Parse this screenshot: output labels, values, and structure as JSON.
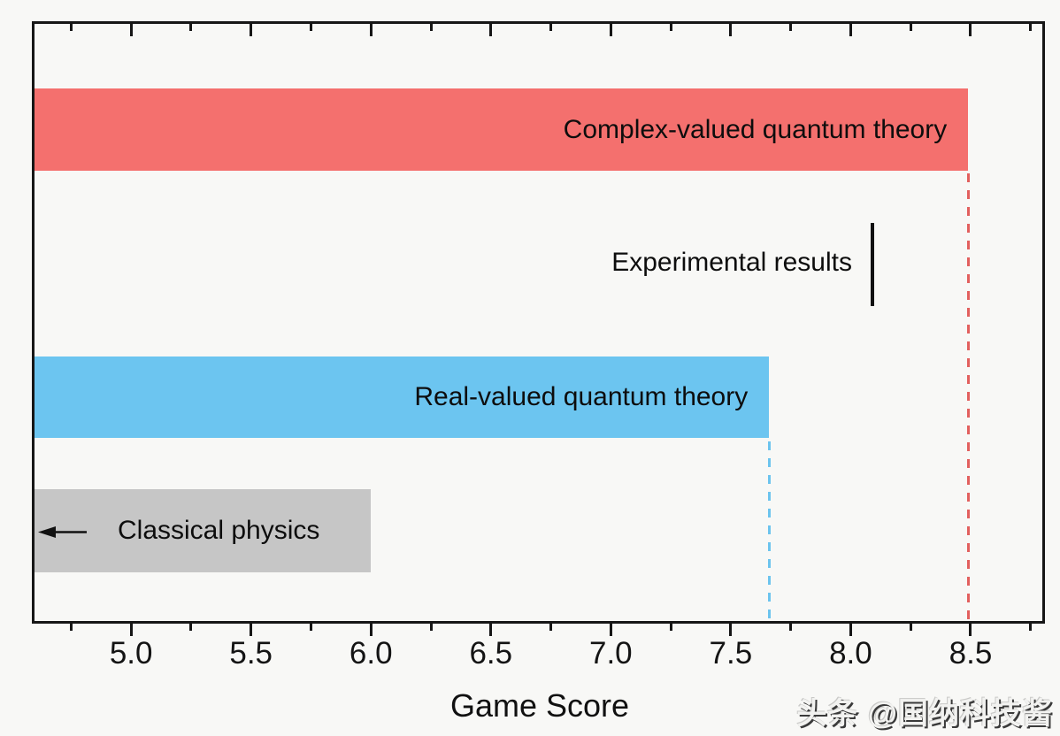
{
  "watermark": {
    "text": "头条 @国纳科技酱"
  },
  "chart_data": {
    "type": "bar",
    "orientation": "horizontal",
    "title": "",
    "xlabel": "Game Score",
    "x_axis": {
      "min": 4.59,
      "max": 8.81,
      "major_ticks": [
        5.0,
        5.5,
        6.0,
        6.5,
        7.0,
        7.5,
        8.0,
        8.5
      ],
      "minor_tick_step": 0.25,
      "tick_decimals": 1,
      "grid": false
    },
    "legend": "labels drawn on bars",
    "rows": [
      {
        "label": "Complex-valued quantum theory",
        "value": 8.49,
        "kind": "bar",
        "color": "#f4706e",
        "guide": true,
        "guide_color": "#e2605e"
      },
      {
        "label": "Experimental results",
        "value": 8.09,
        "kind": "line-marker",
        "color": "#111111"
      },
      {
        "label": "Real-valued quantum theory",
        "value": 7.66,
        "kind": "bar",
        "color": "#6cc5f0",
        "guide": true,
        "guide_color": "#6cc4ee"
      },
      {
        "label": "Classical physics",
        "value": 6.0,
        "kind": "bar",
        "color": "#c6c6c6",
        "annotation": "left-arrow"
      }
    ]
  }
}
